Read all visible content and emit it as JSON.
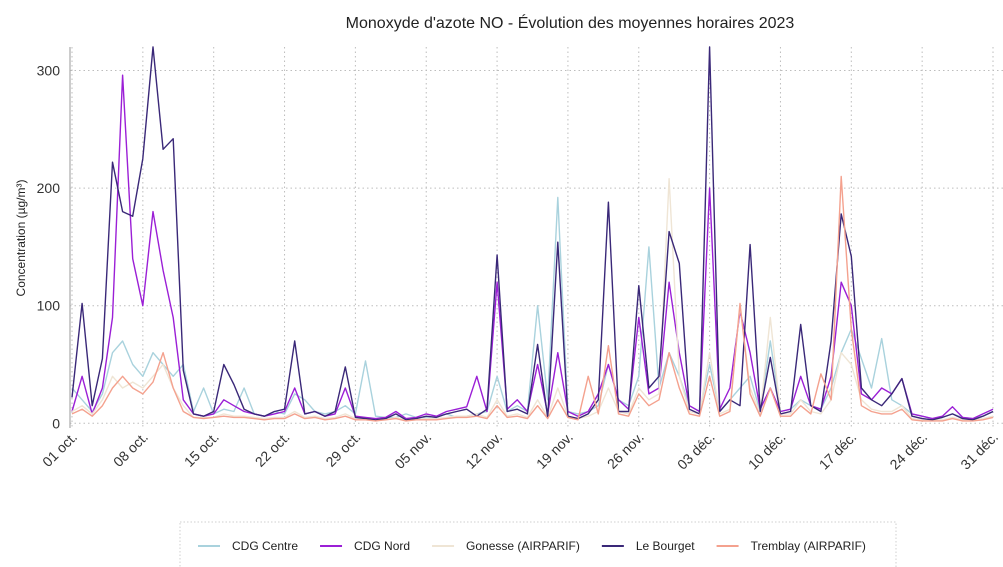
{
  "chart_data": {
    "type": "line",
    "title": "Monoxyde d'azote NO - Évolution des moyennes horaires 2023",
    "y_label": "Concentration (µg/m³)",
    "x": [
      "01 oct.",
      "02 oct.",
      "03 oct.",
      "04 oct.",
      "05 oct.",
      "06 oct.",
      "07 oct.",
      "08 oct.",
      "09 oct.",
      "10 oct.",
      "11 oct.",
      "12 oct.",
      "13 oct.",
      "14 oct.",
      "15 oct.",
      "16 oct.",
      "17 oct.",
      "18 oct.",
      "19 oct.",
      "20 oct.",
      "21 oct.",
      "22 oct.",
      "23 oct.",
      "24 oct.",
      "25 oct.",
      "26 oct.",
      "27 oct.",
      "28 oct.",
      "29 oct.",
      "30 oct.",
      "31 oct.",
      "01 nov.",
      "02 nov.",
      "03 nov.",
      "04 nov.",
      "05 nov.",
      "06 nov.",
      "07 nov.",
      "08 nov.",
      "09 nov.",
      "10 nov.",
      "11 nov.",
      "12 nov.",
      "13 nov.",
      "14 nov.",
      "15 nov.",
      "16 nov.",
      "17 nov.",
      "18 nov.",
      "19 nov.",
      "20 nov.",
      "21 nov.",
      "22 nov.",
      "23 nov.",
      "24 nov.",
      "25 nov.",
      "26 nov.",
      "27 nov.",
      "28 nov.",
      "29 nov.",
      "30 nov.",
      "01 déc.",
      "02 déc.",
      "03 déc.",
      "04 déc.",
      "05 déc.",
      "06 déc.",
      "07 déc.",
      "08 déc.",
      "09 déc.",
      "10 déc.",
      "11 déc.",
      "12 déc.",
      "13 déc.",
      "14 déc.",
      "15 déc.",
      "16 déc.",
      "17 déc.",
      "18 déc.",
      "19 déc.",
      "20 déc.",
      "21 déc.",
      "22 déc.",
      "23 déc.",
      "24 déc.",
      "25 déc.",
      "26 déc.",
      "27 déc.",
      "28 déc.",
      "29 déc.",
      "30 déc.",
      "31 déc."
    ],
    "xticks": [
      "01 oct.",
      "08 oct.",
      "15 oct.",
      "22 oct.",
      "29 oct.",
      "05 nov.",
      "12 nov.",
      "19 nov.",
      "26 nov.",
      "03 déc.",
      "10 déc.",
      "17 déc.",
      "24 déc.",
      "31 déc."
    ],
    "ylim": [
      -4,
      320
    ],
    "yticks": [
      0,
      100,
      200,
      300
    ],
    "grid": true,
    "legend": "bottom",
    "series": [
      {
        "name": "CDG Centre",
        "color": "#a9d2dd",
        "values": [
          30,
          20,
          10,
          25,
          60,
          70,
          50,
          40,
          60,
          50,
          40,
          50,
          10,
          30,
          8,
          12,
          10,
          30,
          8,
          6,
          10,
          8,
          25,
          20,
          10,
          8,
          10,
          15,
          8,
          53,
          6,
          5,
          5,
          8,
          5,
          5,
          6,
          8,
          5,
          6,
          8,
          10,
          40,
          10,
          15,
          10,
          100,
          20,
          192,
          10,
          8,
          10,
          15,
          50,
          20,
          15,
          40,
          150,
          30,
          60,
          40,
          15,
          10,
          50,
          10,
          20,
          30,
          40,
          10,
          70,
          10,
          12,
          20,
          15,
          12,
          30,
          60,
          80,
          55,
          30,
          72,
          20,
          15,
          8,
          6,
          4,
          5,
          8,
          5,
          4,
          6,
          10
        ]
      },
      {
        "name": "CDG Nord",
        "color": "#9b1fd6",
        "values": [
          10,
          40,
          8,
          30,
          90,
          296,
          140,
          100,
          180,
          130,
          90,
          20,
          8,
          6,
          8,
          20,
          15,
          10,
          8,
          6,
          8,
          10,
          30,
          8,
          10,
          6,
          8,
          30,
          6,
          5,
          4,
          5,
          10,
          4,
          5,
          8,
          6,
          10,
          12,
          14,
          40,
          10,
          120,
          12,
          20,
          10,
          50,
          8,
          60,
          10,
          6,
          10,
          25,
          50,
          20,
          12,
          90,
          25,
          30,
          120,
          60,
          15,
          10,
          200,
          12,
          30,
          95,
          60,
          12,
          30,
          10,
          12,
          40,
          15,
          12,
          40,
          120,
          100,
          25,
          20,
          30,
          25,
          38,
          8,
          6,
          4,
          6,
          14,
          5,
          4,
          8,
          12
        ]
      },
      {
        "name": "Gonesse (AIRPARIF)",
        "color": "#efe5d5",
        "values": [
          10,
          15,
          8,
          20,
          40,
          30,
          35,
          30,
          40,
          50,
          30,
          15,
          5,
          5,
          5,
          8,
          6,
          6,
          5,
          4,
          5,
          5,
          10,
          5,
          6,
          4,
          5,
          8,
          4,
          3,
          3,
          3,
          5,
          3,
          3,
          4,
          4,
          5,
          6,
          6,
          8,
          5,
          20,
          6,
          8,
          5,
          20,
          5,
          30,
          6,
          4,
          6,
          10,
          30,
          10,
          8,
          30,
          20,
          25,
          208,
          40,
          10,
          8,
          60,
          8,
          12,
          100,
          30,
          8,
          90,
          8,
          8,
          20,
          10,
          8,
          20,
          60,
          50,
          20,
          12,
          10,
          10,
          15,
          4,
          3,
          3,
          3,
          5,
          3,
          3,
          4,
          6
        ]
      },
      {
        "name": "Le Bourget",
        "color": "#3a2878",
        "values": [
          22,
          102,
          15,
          55,
          222,
          180,
          176,
          225,
          320,
          233,
          242,
          45,
          8,
          6,
          10,
          50,
          33,
          12,
          8,
          6,
          10,
          12,
          70,
          8,
          10,
          6,
          10,
          48,
          5,
          4,
          3,
          4,
          8,
          3,
          4,
          6,
          5,
          8,
          10,
          12,
          6,
          12,
          143,
          10,
          12,
          8,
          67,
          5,
          154,
          6,
          4,
          8,
          20,
          188,
          10,
          10,
          117,
          30,
          40,
          163,
          136,
          12,
          8,
          320,
          10,
          20,
          15,
          152,
          10,
          56,
          8,
          10,
          84,
          15,
          10,
          70,
          178,
          142,
          30,
          20,
          15,
          25,
          38,
          6,
          4,
          3,
          5,
          8,
          4,
          3,
          6,
          10
        ]
      },
      {
        "name": "Tremblay (AIRPARIF)",
        "color": "#f4a18e",
        "values": [
          8,
          12,
          6,
          15,
          30,
          40,
          30,
          25,
          35,
          60,
          30,
          10,
          5,
          4,
          5,
          6,
          5,
          5,
          4,
          3,
          4,
          4,
          8,
          4,
          5,
          3,
          4,
          6,
          3,
          3,
          2,
          3,
          4,
          2,
          3,
          3,
          3,
          4,
          5,
          5,
          6,
          4,
          15,
          5,
          6,
          4,
          15,
          4,
          20,
          5,
          3,
          40,
          8,
          66,
          8,
          6,
          25,
          15,
          20,
          60,
          30,
          8,
          6,
          40,
          6,
          10,
          102,
          25,
          6,
          30,
          6,
          6,
          15,
          8,
          42,
          20,
          210,
          80,
          15,
          10,
          8,
          8,
          12,
          3,
          2,
          2,
          2,
          4,
          2,
          2,
          3,
          5
        ]
      }
    ]
  }
}
